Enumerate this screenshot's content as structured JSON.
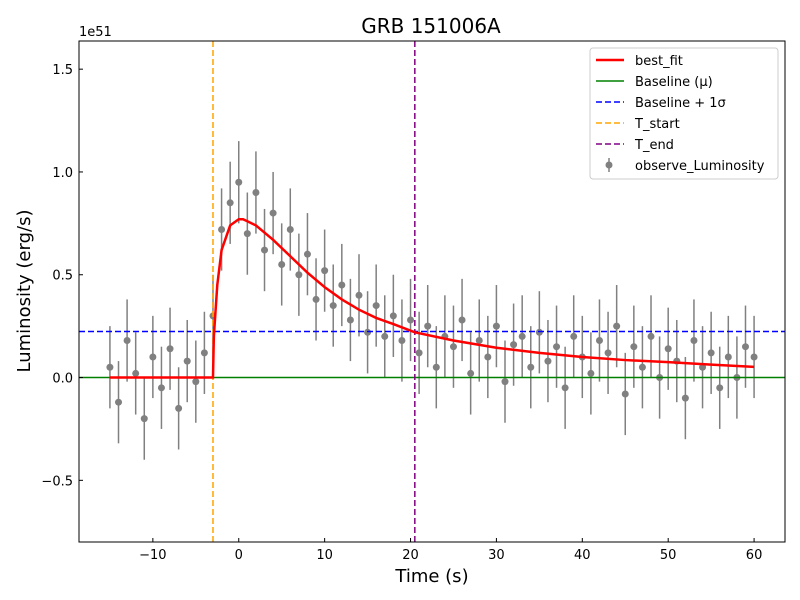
{
  "chart_data": {
    "type": "scatter",
    "title": "GRB 151006A",
    "xlabel": "Time (s)",
    "ylabel": "Luminosity (erg/s)",
    "y_scale_label": "1e51",
    "xlim": [
      -18.6,
      63.6
    ],
    "ylim": [
      -0.8,
      1.637
    ],
    "x_ticks": [
      -10,
      0,
      10,
      20,
      30,
      40,
      50,
      60
    ],
    "x_tick_labels": [
      "−10",
      "0",
      "10",
      "20",
      "30",
      "40",
      "50",
      "60"
    ],
    "y_ticks": [
      -0.5,
      0.0,
      0.5,
      1.0,
      1.5
    ],
    "y_tick_labels": [
      "−0.5",
      "0.0",
      "0.5",
      "1.0",
      "1.5"
    ],
    "grid": false,
    "legend_position": "top-right",
    "legend": [
      {
        "label": "best_fit",
        "color": "#ff0000",
        "style": "solid"
      },
      {
        "label": "Baseline (μ)",
        "color": "#008000",
        "style": "solid"
      },
      {
        "label": "Baseline + 1σ",
        "color": "#0000ff",
        "style": "dashed"
      },
      {
        "label": "T_start",
        "color": "#ffa500",
        "style": "dashed"
      },
      {
        "label": "T_end",
        "color": "#800080",
        "style": "dashed"
      },
      {
        "label": "observe_Luminosity",
        "color": "#808080",
        "style": "errorbar"
      }
    ],
    "baseline": 0.0,
    "baseline_plus_sigma": 0.224,
    "t_start": -3.0,
    "t_end": 20.5,
    "observed": {
      "yerr": 0.2,
      "x": [
        -15,
        -14,
        -13,
        -12,
        -11,
        -10,
        -9,
        -8,
        -7,
        -6,
        -5,
        -4,
        -3,
        -2,
        -1,
        0,
        1,
        2,
        3,
        4,
        5,
        6,
        7,
        8,
        9,
        10,
        11,
        12,
        13,
        14,
        15,
        16,
        17,
        18,
        19,
        20,
        21,
        22,
        23,
        24,
        25,
        26,
        27,
        28,
        29,
        30,
        31,
        32,
        33,
        34,
        35,
        36,
        37,
        38,
        39,
        40,
        41,
        42,
        43,
        44,
        45,
        46,
        47,
        48,
        49,
        50,
        51,
        52,
        53,
        54,
        55,
        56,
        57,
        58,
        59,
        60
      ],
      "y": [
        0.05,
        -0.12,
        0.18,
        0.02,
        -0.2,
        0.1,
        -0.05,
        0.14,
        -0.15,
        0.08,
        -0.02,
        0.12,
        0.3,
        0.72,
        0.85,
        0.95,
        0.7,
        0.9,
        0.62,
        0.8,
        0.55,
        0.72,
        0.5,
        0.6,
        0.38,
        0.52,
        0.35,
        0.45,
        0.28,
        0.4,
        0.22,
        0.35,
        0.2,
        0.3,
        0.18,
        0.28,
        0.12,
        0.25,
        0.05,
        0.2,
        0.15,
        0.28,
        0.02,
        0.18,
        0.1,
        0.25,
        -0.02,
        0.16,
        0.2,
        0.05,
        0.22,
        0.08,
        0.15,
        -0.05,
        0.2,
        0.1,
        0.02,
        0.18,
        0.12,
        0.25,
        -0.08,
        0.15,
        0.05,
        0.2,
        0.0,
        0.14,
        0.08,
        -0.1,
        0.18,
        0.05,
        0.12,
        -0.05,
        0.1,
        0.0,
        0.15,
        0.1
      ]
    },
    "best_fit": {
      "x": [
        -15,
        -3,
        -2.9,
        -2.5,
        -2,
        -1,
        0,
        0.5,
        1,
        2,
        4,
        6,
        8,
        10,
        12,
        14,
        16,
        18,
        20.5,
        25,
        30,
        35,
        40,
        45,
        50,
        55,
        60
      ],
      "y": [
        0,
        0,
        0.2,
        0.45,
        0.62,
        0.74,
        0.77,
        0.77,
        0.76,
        0.74,
        0.67,
        0.59,
        0.51,
        0.44,
        0.38,
        0.33,
        0.29,
        0.26,
        0.22,
        0.18,
        0.145,
        0.12,
        0.1,
        0.085,
        0.075,
        0.063,
        0.052
      ]
    }
  }
}
